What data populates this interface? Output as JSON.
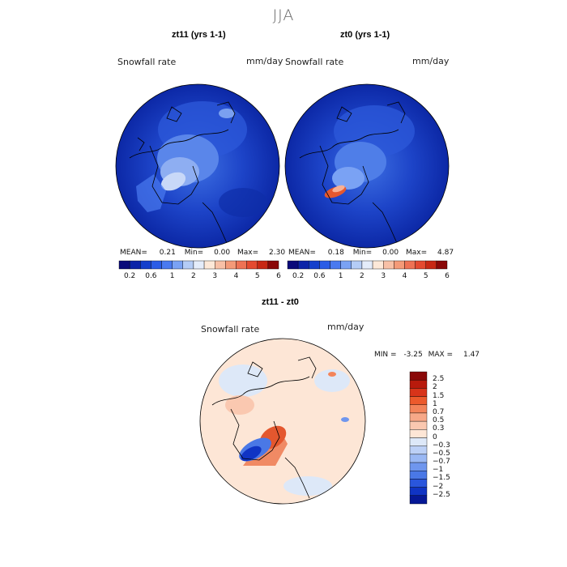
{
  "season": "JJA",
  "panels": [
    {
      "title": "zt11 (yrs 1-1)",
      "variable": "Snowfall rate",
      "units": "mm/day",
      "stats": {
        "mean_label": "MEAN=",
        "mean": "0.21",
        "min_label": "Min=",
        "min": "0.00",
        "max_label": "Max=",
        "max": "2.30"
      }
    },
    {
      "title": "zt0 (yrs 1-1)",
      "variable": "Snowfall rate",
      "units": "mm/day",
      "stats": {
        "mean_label": "MEAN=",
        "mean": "0.18",
        "min_label": "Min=",
        "min": "0.00",
        "max_label": "Max=",
        "max": "4.87"
      }
    }
  ],
  "colorbar_top": {
    "ticks": [
      "0.2",
      "0.6",
      "1",
      "2",
      "3",
      "4",
      "5",
      "6"
    ],
    "colors": [
      "#0a0a7a",
      "#0c24a8",
      "#1440cc",
      "#2a5ce6",
      "#4a7af0",
      "#7aa2f4",
      "#b4ccf6",
      "#e4ecfa",
      "#fde8d8",
      "#f8c0a6",
      "#f49a78",
      "#ee7254",
      "#e44a30",
      "#c82814",
      "#8a0808"
    ]
  },
  "difference": {
    "title": "zt11 - zt0",
    "variable": "Snowfall rate",
    "units": "mm/day",
    "min_label": "MIN =",
    "min": "-3.25",
    "max_label": "MAX =",
    "max": "1.47",
    "legend_labels": [
      "2.5",
      "2",
      "1.5",
      "1",
      "0.7",
      "0.5",
      "0.3",
      "0",
      "−0.3",
      "−0.5",
      "−0.7",
      "−1",
      "−1.5",
      "−2",
      "−2.5"
    ],
    "legend_colors": [
      "#8a0808",
      "#b81a0c",
      "#d8341a",
      "#ec5a2c",
      "#f3845a",
      "#f7a888",
      "#fac8b0",
      "#fde6d6",
      "#dde8f8",
      "#bcd0f6",
      "#9ab8f4",
      "#6f96ee",
      "#4a78e6",
      "#2a56dc",
      "#1034c4",
      "#061896"
    ]
  }
}
